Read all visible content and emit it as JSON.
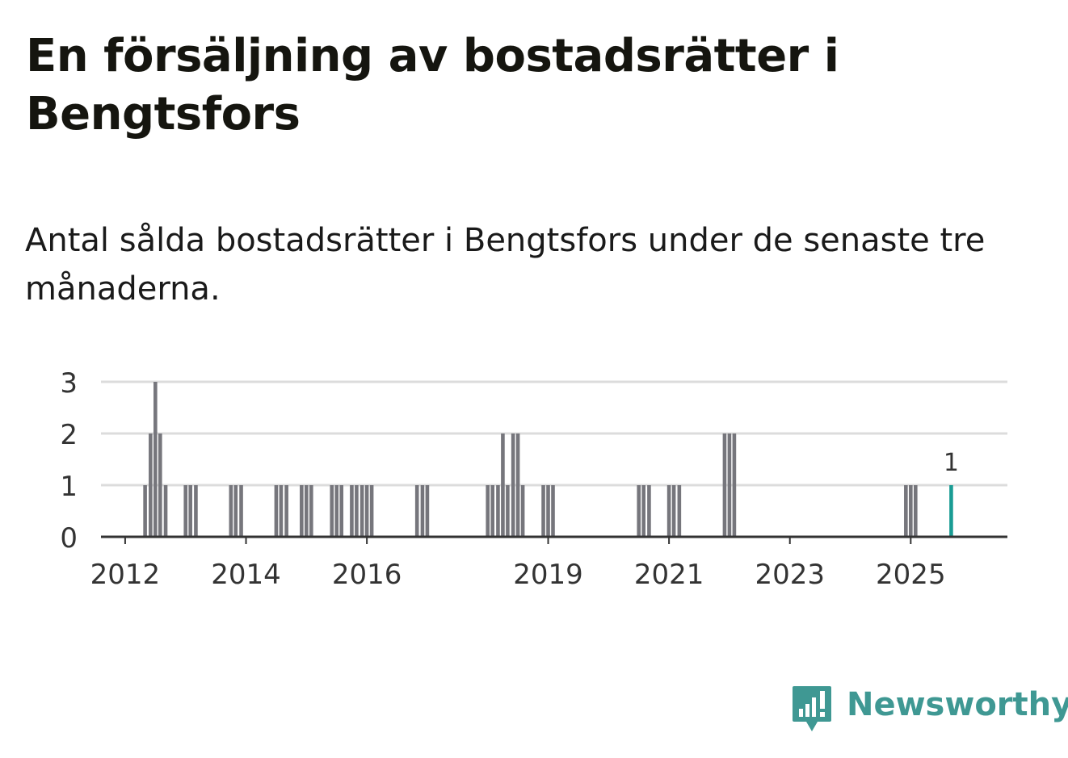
{
  "header": {
    "title": "En försäljning av bostadsrätter i Bengtsfors",
    "subtitle": "Antal sålda bostadsrätter i Bengtsfors under de senaste tre månaderna."
  },
  "colors": {
    "bar": "#76767c",
    "highlight": "#1a9c94",
    "grid": "#dcdcdc",
    "axis": "#333333",
    "text": "#333333",
    "brand": "#3f9893"
  },
  "brand": {
    "name": "Newsworthy",
    "icon": "chart-speech-bubble-icon"
  },
  "chart_data": {
    "type": "bar",
    "title": "Antal sålda bostadsrätter i Bengtsfors under de senaste tre månaderna.",
    "xlabel": "",
    "ylabel": "",
    "grid": true,
    "xlim": [
      2011.6,
      2026.6
    ],
    "ylim": [
      0,
      3
    ],
    "yticks": [
      0,
      1,
      2,
      3
    ],
    "xticks": [
      2012,
      2014,
      2016,
      2019,
      2021,
      2023,
      2025
    ],
    "x": [
      2012.33,
      2012.42,
      2012.5,
      2012.58,
      2012.67,
      2013.0,
      2013.08,
      2013.17,
      2013.75,
      2013.83,
      2013.92,
      2014.5,
      2014.58,
      2014.67,
      2014.92,
      2015.0,
      2015.08,
      2015.42,
      2015.5,
      2015.58,
      2015.75,
      2015.83,
      2015.92,
      2016.0,
      2016.08,
      2016.83,
      2016.92,
      2017.0,
      2018.0,
      2018.08,
      2018.17,
      2018.25,
      2018.33,
      2018.42,
      2018.5,
      2018.58,
      2018.92,
      2019.0,
      2019.08,
      2020.5,
      2020.58,
      2020.67,
      2021.0,
      2021.08,
      2021.17,
      2021.92,
      2022.0,
      2022.08,
      2024.92,
      2025.0,
      2025.08,
      2025.67
    ],
    "values": [
      1,
      2,
      3,
      2,
      1,
      1,
      1,
      1,
      1,
      1,
      1,
      1,
      1,
      1,
      1,
      1,
      1,
      1,
      1,
      1,
      1,
      1,
      1,
      1,
      1,
      1,
      1,
      1,
      1,
      1,
      1,
      2,
      1,
      2,
      2,
      1,
      1,
      1,
      1,
      1,
      1,
      1,
      1,
      1,
      1,
      2,
      2,
      2,
      1,
      1,
      1,
      1
    ],
    "highlight_index": 51,
    "annotations": [
      {
        "x": 2025.67,
        "label": "1"
      }
    ]
  }
}
